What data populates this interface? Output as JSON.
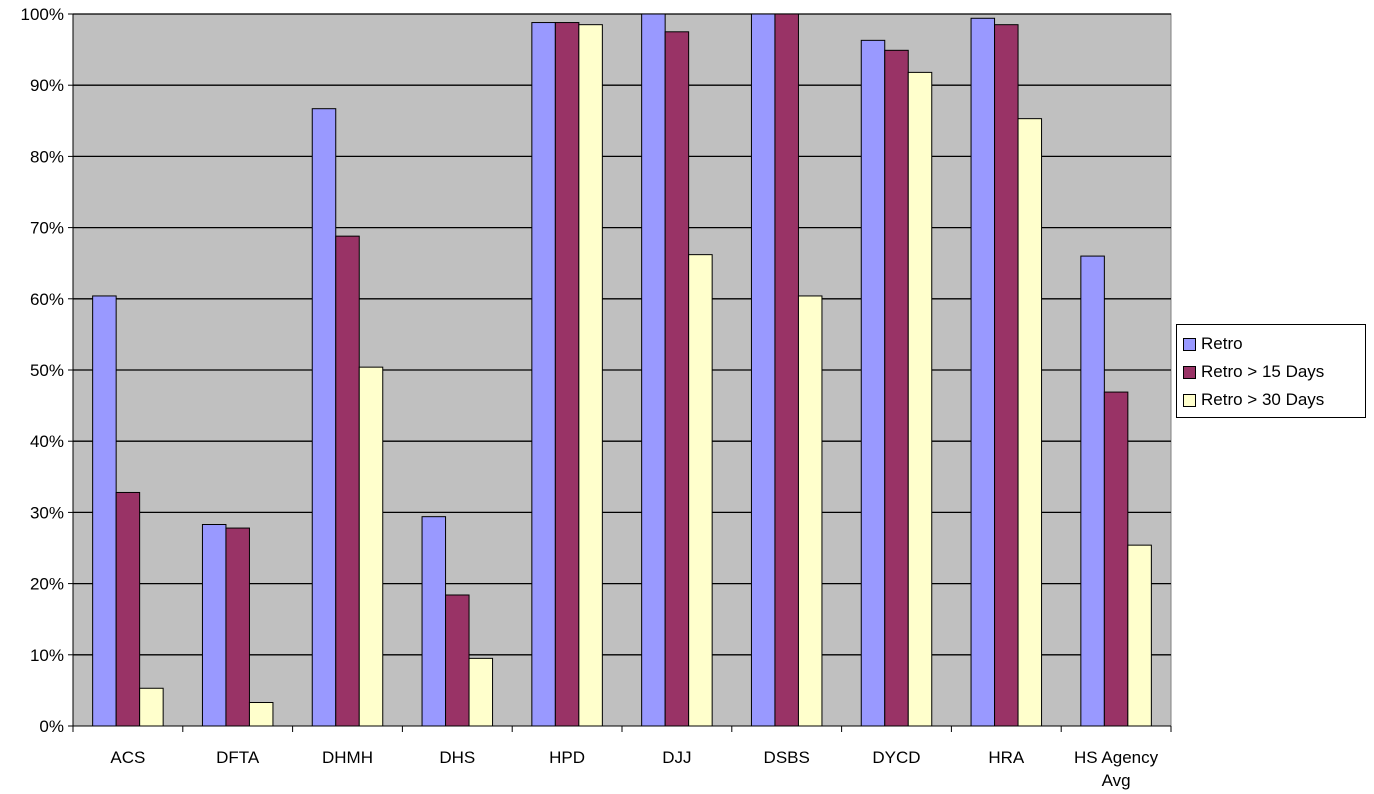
{
  "chart_data": {
    "type": "bar",
    "categories": [
      "ACS",
      "DFTA",
      "DHMH",
      "DHS",
      "HPD",
      "DJJ",
      "DSBS",
      "DYCD",
      "HRA",
      "HS Agency Avg"
    ],
    "series": [
      {
        "name": "Retro",
        "color": "#9999ff",
        "values": [
          60.4,
          28.3,
          86.7,
          29.4,
          98.8,
          100,
          100,
          96.3,
          99.4,
          66.0
        ]
      },
      {
        "name": "Retro > 15 Days",
        "color": "#993366",
        "values": [
          32.8,
          27.8,
          68.8,
          18.4,
          98.8,
          97.5,
          100,
          94.9,
          98.5,
          46.9
        ]
      },
      {
        "name": "Retro > 30 Days",
        "color": "#ffffcc",
        "values": [
          5.3,
          3.3,
          50.4,
          9.5,
          98.5,
          66.2,
          60.4,
          91.8,
          85.3,
          25.4
        ]
      }
    ],
    "ylim": [
      0,
      100
    ],
    "y_ticks": [
      "0%",
      "10%",
      "20%",
      "30%",
      "40%",
      "50%",
      "60%",
      "70%",
      "80%",
      "90%",
      "100%"
    ],
    "grid": true,
    "plot_background": "#c0c0c0",
    "legend_position": "right"
  }
}
